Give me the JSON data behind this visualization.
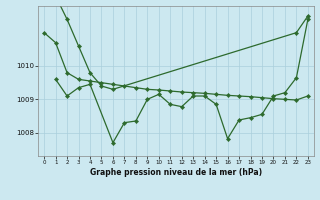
{
  "title": "Graphe pression niveau de la mer (hPa)",
  "bg_color": "#cce8f0",
  "grid_color": "#aacfdc",
  "line_color": "#2d6a2d",
  "yticks": [
    1008,
    1009,
    1010
  ],
  "ylim": [
    1007.3,
    1011.8
  ],
  "xlim": [
    -0.5,
    23.5
  ],
  "xticks": [
    0,
    1,
    2,
    3,
    4,
    5,
    6,
    7,
    8,
    9,
    10,
    11,
    12,
    13,
    14,
    15,
    16,
    17,
    18,
    19,
    20,
    21,
    22,
    23
  ],
  "series1_x": [
    0,
    1,
    2,
    3,
    4,
    5,
    6,
    22,
    23
  ],
  "series1_y": [
    1013.2,
    1012.1,
    1011.4,
    1010.6,
    1009.8,
    1009.4,
    1009.3,
    1011.0,
    1011.5
  ],
  "series2_x": [
    0,
    1,
    2,
    3,
    4,
    5,
    6,
    7,
    8,
    9,
    10,
    11,
    12,
    13,
    14,
    15,
    16,
    17,
    18,
    19,
    20,
    21,
    22,
    23
  ],
  "series2_y": [
    1011.0,
    1010.7,
    1009.8,
    1009.6,
    1009.55,
    1009.5,
    1009.45,
    1009.4,
    1009.35,
    1009.3,
    1009.28,
    1009.25,
    1009.22,
    1009.2,
    1009.18,
    1009.15,
    1009.12,
    1009.1,
    1009.08,
    1009.05,
    1009.02,
    1009.0,
    1008.98,
    1009.1
  ],
  "series3_x": [
    1,
    2,
    3,
    4,
    6,
    7,
    8,
    9,
    10,
    11,
    12,
    13,
    14,
    15,
    16,
    17,
    18,
    19,
    20,
    21,
    22,
    23
  ],
  "series3_y": [
    1009.6,
    1009.1,
    1009.35,
    1009.45,
    1007.7,
    1008.3,
    1008.35,
    1009.0,
    1009.15,
    1008.85,
    1008.78,
    1009.1,
    1009.1,
    1008.85,
    1007.82,
    1008.38,
    1008.45,
    1008.55,
    1009.1,
    1009.2,
    1009.65,
    1011.4
  ]
}
